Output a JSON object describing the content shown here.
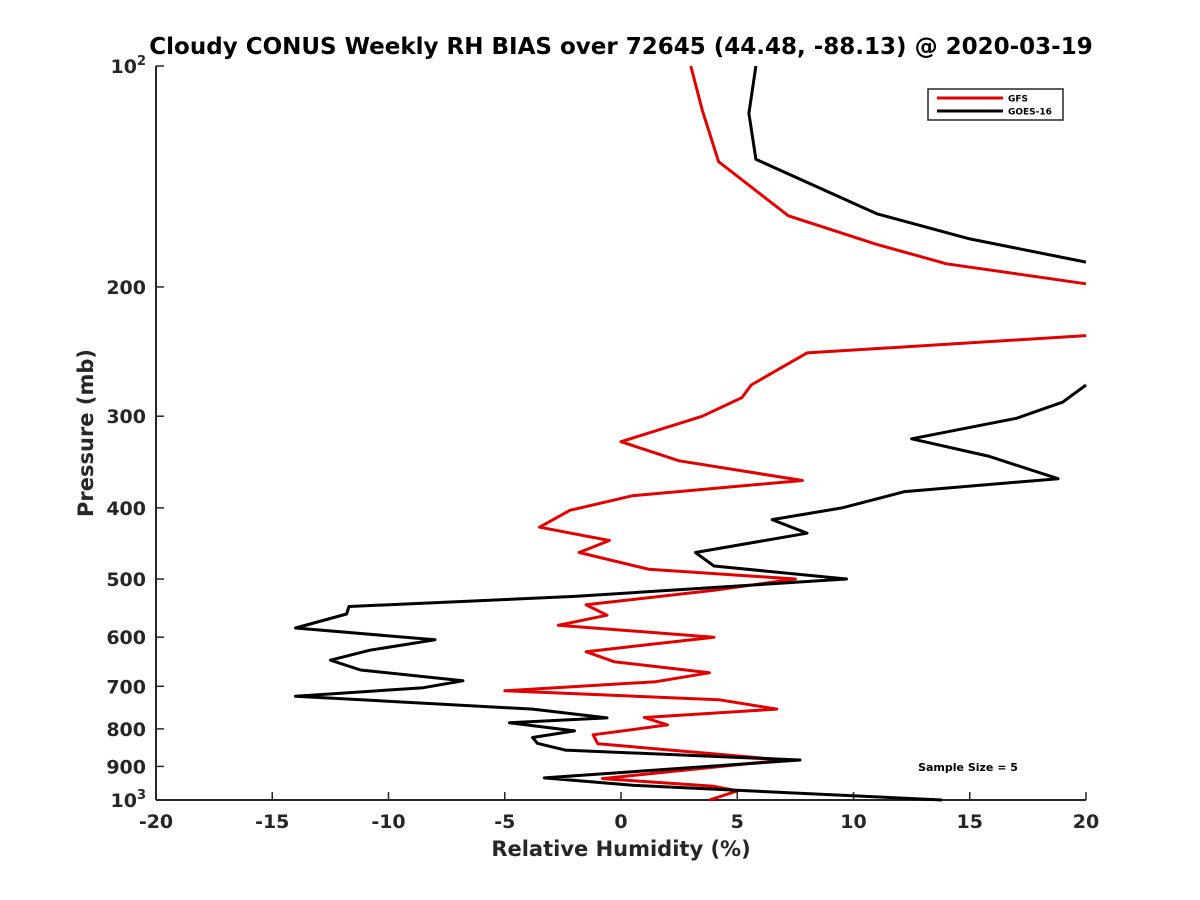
{
  "chart_data": {
    "type": "line",
    "orientation": "vertical-profile",
    "title": "Cloudy CONUS Weekly RH BIAS over 72645 (44.48, -88.13) @ 2020-03-19",
    "xlabel": "Relative Humidity (%)",
    "ylabel": "Pressure (mb)",
    "xlim": [
      -20,
      20
    ],
    "ylim": [
      100,
      1000
    ],
    "yscale": "log",
    "y_reversed": true,
    "grid": false,
    "legend_position": "top-right",
    "x_ticks": [
      "-20",
      "-15",
      "-10",
      "-5",
      "0",
      "5",
      "10",
      "15",
      "20"
    ],
    "y_ticks": [
      {
        "value": 100,
        "base": "10",
        "exp": "2"
      },
      {
        "value": 200,
        "label": "200"
      },
      {
        "value": 300,
        "label": "300"
      },
      {
        "value": 400,
        "label": "400"
      },
      {
        "value": 500,
        "label": "500"
      },
      {
        "value": 600,
        "label": "600"
      },
      {
        "value": 700,
        "label": "700"
      },
      {
        "value": 800,
        "label": "800"
      },
      {
        "value": 900,
        "label": "900"
      },
      {
        "value": 1000,
        "base": "10",
        "exp": "3"
      }
    ],
    "annotation": "Sample Size = 5",
    "series": [
      {
        "name": "GFS",
        "color": "#e00000",
        "points": [
          [
            3.0,
            100
          ],
          [
            3.5,
            115
          ],
          [
            4.2,
            135
          ],
          [
            7.2,
            160
          ],
          [
            11.0,
            175
          ],
          [
            14.0,
            186
          ],
          [
            20.0,
            198
          ],
          [
            null,
            212
          ],
          [
            20.0,
            233
          ],
          [
            8.0,
            246
          ],
          [
            5.6,
            272
          ],
          [
            5.2,
            283
          ],
          [
            3.5,
            300
          ],
          [
            0.0,
            325
          ],
          [
            2.5,
            345
          ],
          [
            7.8,
            367
          ],
          [
            0.5,
            385
          ],
          [
            -2.2,
            403
          ],
          [
            -3.5,
            425
          ],
          [
            -0.5,
            443
          ],
          [
            -1.8,
            460
          ],
          [
            1.2,
            485
          ],
          [
            7.5,
            500
          ],
          [
            4.0,
            518
          ],
          [
            -1.5,
            542
          ],
          [
            -0.6,
            560
          ],
          [
            -2.7,
            578
          ],
          [
            4.0,
            600
          ],
          [
            -1.5,
            628
          ],
          [
            -0.3,
            648
          ],
          [
            3.8,
            671
          ],
          [
            1.5,
            690
          ],
          [
            -5.0,
            710
          ],
          [
            4.2,
            730
          ],
          [
            6.7,
            752
          ],
          [
            1.0,
            772
          ],
          [
            2.0,
            790
          ],
          [
            -1.2,
            815
          ],
          [
            -1.0,
            838
          ],
          [
            7.0,
            882
          ],
          [
            -0.8,
            935
          ],
          [
            4.0,
            958
          ],
          [
            5.0,
            972
          ],
          [
            3.8,
            1000
          ]
        ]
      },
      {
        "name": "GOES-16",
        "color": "#000000",
        "points": [
          [
            5.8,
            100
          ],
          [
            5.5,
            116
          ],
          [
            5.8,
            134
          ],
          [
            11.0,
            159
          ],
          [
            15.0,
            172
          ],
          [
            20.0,
            185
          ],
          [
            null,
            205
          ],
          [
            20.0,
            272
          ],
          [
            19.0,
            287
          ],
          [
            17.0,
            302
          ],
          [
            12.5,
            322
          ],
          [
            15.8,
            340
          ],
          [
            18.8,
            365
          ],
          [
            12.2,
            380
          ],
          [
            9.5,
            400
          ],
          [
            6.5,
            415
          ],
          [
            8.0,
            433
          ],
          [
            3.2,
            460
          ],
          [
            4.0,
            480
          ],
          [
            9.7,
            500
          ],
          [
            -2.0,
            528
          ],
          [
            -11.7,
            545
          ],
          [
            -11.8,
            558
          ],
          [
            -14.0,
            583
          ],
          [
            -8.0,
            605
          ],
          [
            -10.8,
            625
          ],
          [
            -12.5,
            645
          ],
          [
            -11.2,
            665
          ],
          [
            -6.8,
            688
          ],
          [
            -8.5,
            703
          ],
          [
            -14.0,
            722
          ],
          [
            -3.8,
            752
          ],
          [
            -0.6,
            773
          ],
          [
            -4.8,
            785
          ],
          [
            -2.0,
            805
          ],
          [
            -3.8,
            822
          ],
          [
            -3.6,
            837
          ],
          [
            -2.4,
            855
          ],
          [
            7.7,
            882
          ],
          [
            -3.3,
            933
          ],
          [
            0.5,
            955
          ],
          [
            13.8,
            1000
          ]
        ]
      }
    ]
  }
}
